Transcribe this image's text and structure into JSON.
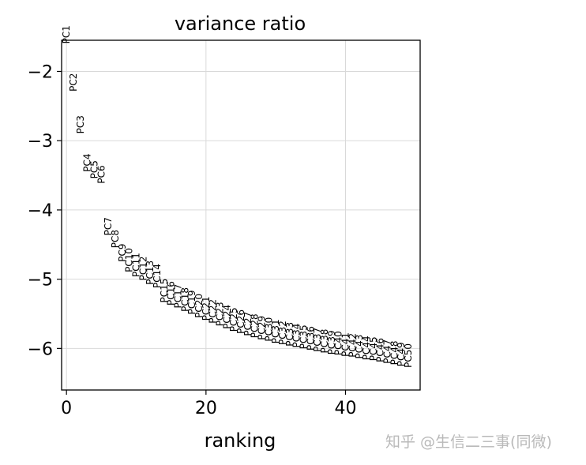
{
  "chart_data": {
    "type": "scatter",
    "title": "variance ratio",
    "xlabel": "ranking",
    "ylabel": "",
    "xlim": [
      -0.7,
      50.7
    ],
    "ylim": [
      -6.6,
      -1.55
    ],
    "xticks": [
      0,
      20,
      40
    ],
    "yticks": [
      -2,
      -3,
      -4,
      -5,
      -6
    ],
    "xtick_labels": [
      "0",
      "20",
      "40"
    ],
    "ytick_labels": [
      "−2",
      "−3",
      "−4",
      "−5",
      "−6"
    ],
    "grid": true,
    "points": [
      {
        "label": "PC1",
        "x": 0,
        "y": -1.6
      },
      {
        "label": "PC2",
        "x": 1,
        "y": -2.29
      },
      {
        "label": "PC3",
        "x": 2,
        "y": -2.9
      },
      {
        "label": "PC4",
        "x": 3,
        "y": -3.45
      },
      {
        "label": "PC5",
        "x": 4,
        "y": -3.55
      },
      {
        "label": "PC6",
        "x": 5,
        "y": -3.62
      },
      {
        "label": "PC7",
        "x": 6,
        "y": -4.37
      },
      {
        "label": "PC8",
        "x": 7,
        "y": -4.55
      },
      {
        "label": "PC9",
        "x": 8,
        "y": -4.75
      },
      {
        "label": "PC10",
        "x": 9,
        "y": -4.9
      },
      {
        "label": "PC11",
        "x": 10,
        "y": -4.97
      },
      {
        "label": "PC12",
        "x": 11,
        "y": -5.02
      },
      {
        "label": "PC13",
        "x": 12,
        "y": -5.08
      },
      {
        "label": "PC14",
        "x": 13,
        "y": -5.13
      },
      {
        "label": "PC15",
        "x": 14,
        "y": -5.34
      },
      {
        "label": "PC16",
        "x": 15,
        "y": -5.38
      },
      {
        "label": "PC17",
        "x": 16,
        "y": -5.42
      },
      {
        "label": "PC18",
        "x": 17,
        "y": -5.47
      },
      {
        "label": "PC19",
        "x": 18,
        "y": -5.51
      },
      {
        "label": "PC20",
        "x": 19,
        "y": -5.56
      },
      {
        "label": "PC21",
        "x": 20,
        "y": -5.6
      },
      {
        "label": "PC22",
        "x": 21,
        "y": -5.64
      },
      {
        "label": "PC23",
        "x": 22,
        "y": -5.68
      },
      {
        "label": "PC24",
        "x": 23,
        "y": -5.72
      },
      {
        "label": "PC25",
        "x": 24,
        "y": -5.76
      },
      {
        "label": "PC26",
        "x": 25,
        "y": -5.79
      },
      {
        "label": "PC27",
        "x": 26,
        "y": -5.82
      },
      {
        "label": "PC28",
        "x": 27,
        "y": -5.85
      },
      {
        "label": "PC29",
        "x": 28,
        "y": -5.88
      },
      {
        "label": "PC30",
        "x": 29,
        "y": -5.9
      },
      {
        "label": "PC31",
        "x": 30,
        "y": -5.93
      },
      {
        "label": "PC32",
        "x": 31,
        "y": -5.95
      },
      {
        "label": "PC33",
        "x": 32,
        "y": -5.97
      },
      {
        "label": "PC34",
        "x": 33,
        "y": -5.99
      },
      {
        "label": "PC35",
        "x": 34,
        "y": -6.01
      },
      {
        "label": "PC36",
        "x": 35,
        "y": -6.03
      },
      {
        "label": "PC37",
        "x": 36,
        "y": -6.05
      },
      {
        "label": "PC38",
        "x": 37,
        "y": -6.07
      },
      {
        "label": "PC39",
        "x": 38,
        "y": -6.09
      },
      {
        "label": "PC40",
        "x": 39,
        "y": -6.1
      },
      {
        "label": "PC41",
        "x": 40,
        "y": -6.12
      },
      {
        "label": "PC42",
        "x": 41,
        "y": -6.13
      },
      {
        "label": "PC43",
        "x": 42,
        "y": -6.15
      },
      {
        "label": "PC44",
        "x": 43,
        "y": -6.17
      },
      {
        "label": "PC45",
        "x": 44,
        "y": -6.18
      },
      {
        "label": "PC46",
        "x": 45,
        "y": -6.2
      },
      {
        "label": "PC47",
        "x": 46,
        "y": -6.22
      },
      {
        "label": "PC48",
        "x": 47,
        "y": -6.24
      },
      {
        "label": "PC49",
        "x": 48,
        "y": -6.26
      },
      {
        "label": "PC50",
        "x": 49,
        "y": -6.28
      }
    ]
  },
  "watermark": "知乎 @生信二三事(同微)"
}
